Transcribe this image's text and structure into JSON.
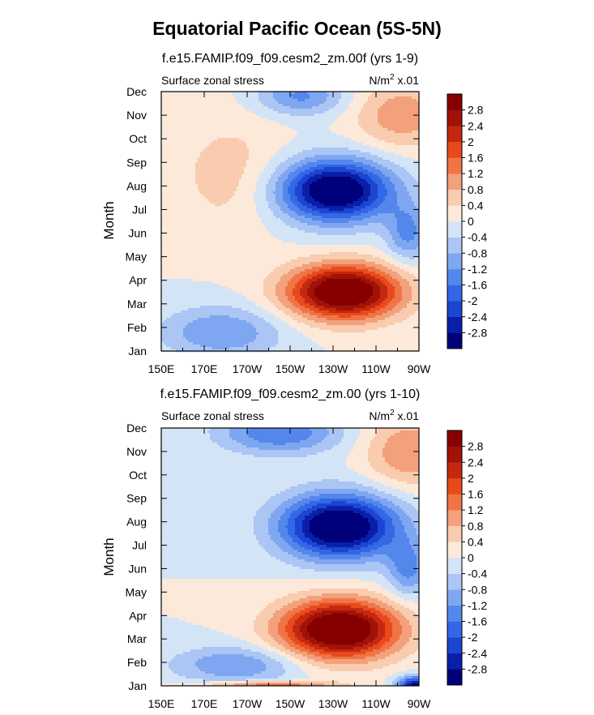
{
  "figure": {
    "title": "Equatorial Pacific Ocean (5S-5N)"
  },
  "colorbar": {
    "levels": [
      -2.8,
      -2.4,
      -2.0,
      -1.6,
      -1.2,
      -0.8,
      -0.4,
      0,
      0.4,
      0.8,
      1.2,
      1.6,
      2.0,
      2.4,
      2.8
    ],
    "labels": [
      "-2.8",
      "-2.4",
      "-2",
      "-1.6",
      "-1.2",
      "-0.8",
      "-0.4",
      "0",
      "0.4",
      "0.8",
      "1.2",
      "1.6",
      "2",
      "2.4",
      "2.8"
    ],
    "colors": [
      "#00007a",
      "#0a1fa8",
      "#1c45d2",
      "#3467e6",
      "#5487ec",
      "#7fa7f1",
      "#abc6f4",
      "#d4e4f7",
      "#fce9da",
      "#f9ccb0",
      "#f3a07c",
      "#ef7446",
      "#e84a1c",
      "#c42810",
      "#a11207",
      "#860000"
    ]
  },
  "chart_data": [
    {
      "type": "heatmap",
      "subtitle": "f.e15.FAMIP.f09_f09.cesm2_zm.00f (yrs 1-9)",
      "left_label": "Surface zonal stress",
      "right_label": "N/m",
      "right_label_sup": "2",
      "right_label_suffix": " x.01",
      "xlabel": "",
      "ylabel": "Month",
      "x_ticks": [
        "150E",
        "170E",
        "170W",
        "150W",
        "130W",
        "110W",
        "90W"
      ],
      "y_ticks": [
        "Jan",
        "Feb",
        "Mar",
        "Apr",
        "May",
        "Jun",
        "Jul",
        "Aug",
        "Sep",
        "Oct",
        "Nov",
        "Dec"
      ],
      "x_range": [
        150,
        270
      ],
      "y_range": [
        1,
        12
      ],
      "features": [
        {
          "type": "blob",
          "lon": 235,
          "mon": 3.5,
          "slon": 26,
          "smon": 1.15,
          "amp": 3.7,
          "rot": -0.65
        },
        {
          "type": "blob",
          "lon": 231,
          "mon": 7.8,
          "slon": 26,
          "smon": 1.3,
          "amp": -3.6,
          "rot": -0.6
        },
        {
          "type": "blob",
          "lon": 215,
          "mon": 11.8,
          "slon": 20,
          "smon": 0.8,
          "amp": -1.3,
          "rot": 0
        },
        {
          "type": "blob",
          "lon": 262,
          "mon": 11.0,
          "slon": 22,
          "smon": 1.4,
          "amp": 1.1,
          "rot": 0
        },
        {
          "type": "blob",
          "lon": 178,
          "mon": 1.8,
          "slon": 28,
          "smon": 1.1,
          "amp": -1.2,
          "rot": 0
        },
        {
          "type": "blob",
          "lon": 182,
          "mon": 8.5,
          "slon": 26,
          "smon": 2.5,
          "amp": 0.6,
          "rot": 0
        },
        {
          "type": "blob",
          "lon": 265,
          "mon": 6.0,
          "slon": 10,
          "smon": 1.2,
          "amp": -1.3,
          "rot": 0
        }
      ]
    },
    {
      "type": "heatmap",
      "subtitle": "f.e15.FAMIP.f09_f09.cesm2_zm.00 (yrs 1-10)",
      "left_label": "Surface zonal stress",
      "right_label": "N/m",
      "right_label_sup": "2",
      "right_label_suffix": " x.01",
      "xlabel": "",
      "ylabel": "Month",
      "x_ticks": [
        "150E",
        "170E",
        "170W",
        "150W",
        "130W",
        "110W",
        "90W"
      ],
      "y_ticks": [
        "Jan",
        "Feb",
        "Mar",
        "Apr",
        "May",
        "Jun",
        "Jul",
        "Aug",
        "Sep",
        "Oct",
        "Nov",
        "Dec"
      ],
      "x_range": [
        150,
        270
      ],
      "y_range": [
        1,
        12
      ],
      "features": [
        {
          "type": "blob",
          "lon": 233,
          "mon": 3.4,
          "slon": 27,
          "smon": 1.25,
          "amp": 3.8,
          "rot": -0.6
        },
        {
          "type": "blob",
          "lon": 233,
          "mon": 7.8,
          "slon": 27,
          "smon": 1.35,
          "amp": -3.7,
          "rot": -0.6
        },
        {
          "type": "blob",
          "lon": 205,
          "mon": 11.8,
          "slon": 28,
          "smon": 0.9,
          "amp": -1.6,
          "rot": 0
        },
        {
          "type": "blob",
          "lon": 265,
          "mon": 11.0,
          "slon": 20,
          "smon": 1.5,
          "amp": 1.2,
          "rot": 0
        },
        {
          "type": "blob",
          "lon": 185,
          "mon": 1.9,
          "slon": 30,
          "smon": 0.8,
          "amp": -1.2,
          "rot": 0
        },
        {
          "type": "blob",
          "lon": 200,
          "mon": 1.05,
          "slon": 30,
          "smon": 0.15,
          "amp": 1.6,
          "rot": 0
        },
        {
          "type": "blob",
          "lon": 268,
          "mon": 1.0,
          "slon": 8,
          "smon": 0.4,
          "amp": -3.0,
          "rot": 0
        },
        {
          "type": "blob",
          "lon": 265,
          "mon": 6.0,
          "slon": 10,
          "smon": 1.2,
          "amp": -1.3,
          "rot": 0
        }
      ]
    }
  ]
}
